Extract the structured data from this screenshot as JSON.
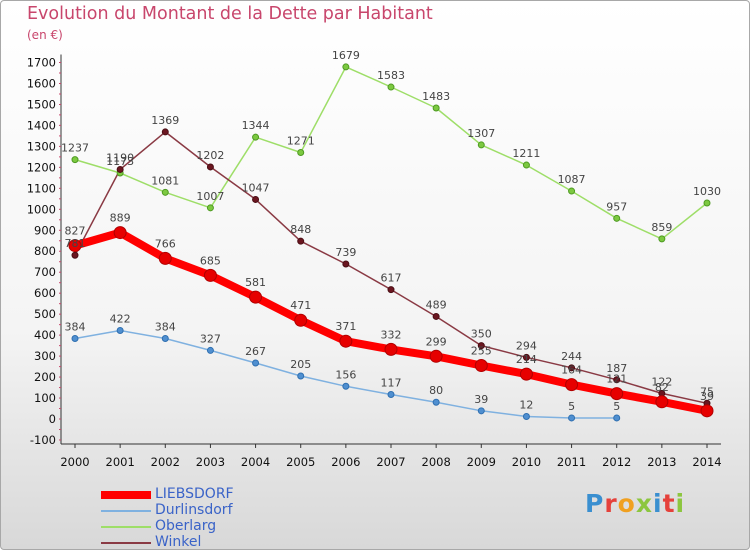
{
  "title": "Evolution du Montant de la Dette par Habitant",
  "subtitle": "(en €)",
  "logo": {
    "text": "Proxiti",
    "letters": [
      {
        "ch": "P",
        "color": "#3a8fd0"
      },
      {
        "ch": "r",
        "color": "#e5413b"
      },
      {
        "ch": "o",
        "color": "#f0a020"
      },
      {
        "ch": "x",
        "color": "#8cc63f"
      },
      {
        "ch": "i",
        "color": "#3a8fd0"
      },
      {
        "ch": "t",
        "color": "#e5413b"
      },
      {
        "ch": "i",
        "color": "#8cc63f"
      }
    ]
  },
  "chart_data": {
    "type": "line",
    "title": "Evolution du Montant de la Dette par Habitant",
    "subtitle": "(en €)",
    "x": [
      "2000",
      "2001",
      "2002",
      "2003",
      "2004",
      "2005",
      "2006",
      "2007",
      "2008",
      "2009",
      "2010",
      "2011",
      "2012",
      "2013",
      "2014"
    ],
    "ylim": [
      -100,
      1700
    ],
    "yticks": [
      -100,
      0,
      100,
      200,
      300,
      400,
      500,
      600,
      700,
      800,
      900,
      1000,
      1100,
      1200,
      1300,
      1400,
      1500,
      1600,
      1700
    ],
    "grid": false,
    "legend_position": "bottom-left",
    "series": [
      {
        "name": "LIEBSDORF",
        "color": "#ff0000",
        "values": [
          827,
          889,
          766,
          685,
          581,
          471,
          371,
          332,
          299,
          255,
          214,
          164,
          121,
          82,
          39
        ]
      },
      {
        "name": "Durlinsdorf",
        "color": "#5b9bd5",
        "values": [
          384,
          422,
          384,
          327,
          267,
          205,
          156,
          117,
          80,
          39,
          12,
          5,
          5,
          null,
          null
        ]
      },
      {
        "name": "Oberlarg",
        "color": "#8fd35a",
        "values": [
          1237,
          1173,
          1081,
          1007,
          1344,
          1271,
          1679,
          1583,
          1483,
          1307,
          1211,
          1087,
          957,
          859,
          1030
        ]
      },
      {
        "name": "Winkel",
        "color": "#7a1e2a",
        "values": [
          781,
          1190,
          1369,
          1202,
          1047,
          848,
          739,
          617,
          489,
          350,
          294,
          244,
          187,
          122,
          75
        ]
      }
    ]
  }
}
